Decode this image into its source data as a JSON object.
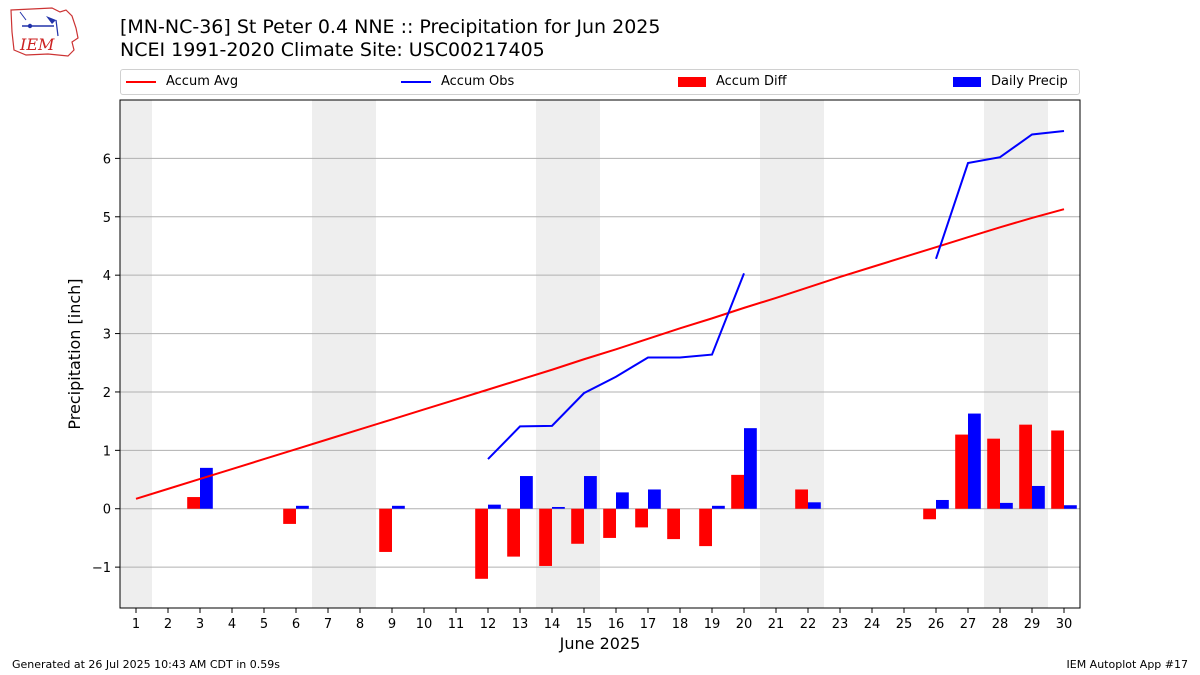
{
  "header": {
    "title_line1": "[MN-NC-36] St Peter 0.4 NNE :: Precipitation for Jun 2025",
    "title_line2": "NCEI 1991-2020 Climate Site: USC00217405",
    "logo_text": "IEM"
  },
  "footer": {
    "generated": "Generated at 26 Jul 2025 10:43 AM CDT in 0.59s",
    "app": "IEM Autoplot App #17"
  },
  "colors": {
    "accum_avg": "#ff0000",
    "accum_obs": "#0000ff",
    "accum_diff": "#ff0000",
    "daily_precip": "#0000ff",
    "weekend_shade": "#eeeeee",
    "grid": "#b0b0b0"
  },
  "chart_data": {
    "type": "bar",
    "title": "[MN-NC-36] St Peter 0.4 NNE :: Precipitation for Jun 2025",
    "xlabel": "June 2025",
    "ylabel": "Precipitation [inch]",
    "ylim": [
      -1.7,
      7.0
    ],
    "xlim": [
      0.5,
      30.5
    ],
    "yticks": [
      -1,
      0,
      1,
      2,
      3,
      4,
      5,
      6
    ],
    "ytick_labels": [
      "−1",
      "0",
      "1",
      "2",
      "3",
      "4",
      "5",
      "6"
    ],
    "x": [
      1,
      2,
      3,
      4,
      5,
      6,
      7,
      8,
      9,
      10,
      11,
      12,
      13,
      14,
      15,
      16,
      17,
      18,
      19,
      20,
      21,
      22,
      23,
      24,
      25,
      26,
      27,
      28,
      29,
      30
    ],
    "grid": true,
    "legend_position": "top",
    "legend": [
      "Accum Avg",
      "Accum Obs",
      "Accum Diff",
      "Daily Precip"
    ],
    "weekend_ranges": [
      [
        0.5,
        1.5
      ],
      [
        6.5,
        8.5
      ],
      [
        13.5,
        15.5
      ],
      [
        20.5,
        22.5
      ],
      [
        27.5,
        29.5
      ]
    ],
    "series": [
      {
        "name": "Accum Avg",
        "kind": "line",
        "values": [
          0.17,
          0.34,
          0.51,
          0.68,
          0.85,
          1.02,
          1.19,
          1.36,
          1.53,
          1.7,
          1.87,
          2.04,
          2.21,
          2.38,
          2.56,
          2.73,
          2.91,
          3.09,
          3.26,
          3.44,
          3.61,
          3.79,
          3.97,
          4.14,
          4.31,
          4.48,
          4.65,
          4.82,
          4.98,
          5.13
        ]
      },
      {
        "name": "Accum Obs",
        "kind": "line",
        "values": [
          null,
          null,
          null,
          null,
          null,
          null,
          null,
          null,
          null,
          null,
          null,
          0.85,
          1.41,
          1.42,
          1.98,
          2.26,
          2.59,
          2.59,
          2.64,
          4.03,
          null,
          null,
          null,
          null,
          null,
          4.28,
          5.92,
          6.02,
          6.41,
          6.47
        ]
      },
      {
        "name": "Accum Diff",
        "kind": "bar",
        "values": [
          null,
          null,
          0.2,
          null,
          null,
          -0.26,
          null,
          null,
          -0.74,
          null,
          null,
          -1.2,
          -0.82,
          -0.98,
          -0.6,
          -0.5,
          -0.32,
          -0.52,
          -0.64,
          0.58,
          null,
          0.33,
          null,
          null,
          null,
          -0.18,
          1.27,
          1.2,
          1.44,
          1.34
        ]
      },
      {
        "name": "Daily Precip",
        "kind": "bar",
        "values": [
          null,
          null,
          0.7,
          null,
          null,
          0.05,
          null,
          null,
          0.05,
          null,
          null,
          0.07,
          0.56,
          0.03,
          0.56,
          0.28,
          0.33,
          null,
          0.05,
          1.38,
          null,
          0.11,
          null,
          null,
          null,
          0.15,
          1.63,
          0.1,
          0.39,
          0.06
        ]
      }
    ]
  }
}
